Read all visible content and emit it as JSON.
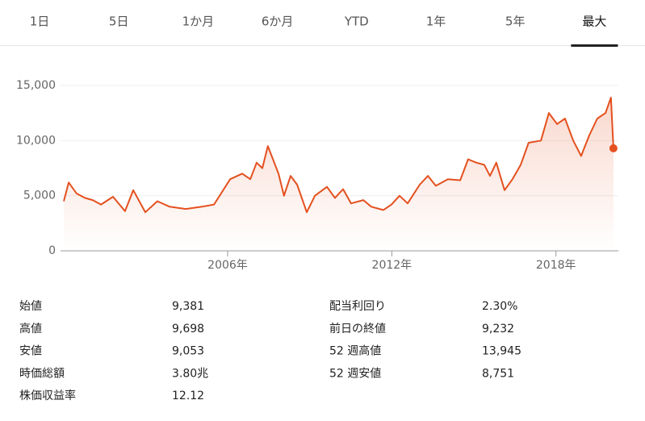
{
  "tabs": {
    "items": [
      "1日",
      "5日",
      "1か月",
      "6か月",
      "YTD",
      "1年",
      "5年",
      "最大"
    ],
    "selected": 7
  },
  "chart_data": {
    "type": "line",
    "x": [
      2000.01,
      2000.19,
      2000.48,
      2000.78,
      2001.07,
      2001.37,
      2001.81,
      2002.25,
      2002.55,
      2002.99,
      2003.43,
      2003.88,
      2004.47,
      2005.06,
      2005.5,
      2006.09,
      2006.53,
      2006.83,
      2007.06,
      2007.27,
      2007.47,
      2007.86,
      2008.06,
      2008.3,
      2008.54,
      2008.89,
      2009.19,
      2009.63,
      2009.92,
      2010.22,
      2010.51,
      2010.96,
      2011.25,
      2011.69,
      2011.99,
      2012.28,
      2012.58,
      2013.02,
      2013.32,
      2013.61,
      2014.05,
      2014.5,
      2014.79,
      2015.09,
      2015.38,
      2015.59,
      2015.82,
      2016.12,
      2016.41,
      2016.71,
      2017.0,
      2017.45,
      2017.74,
      2018.04,
      2018.33,
      2018.63,
      2018.92,
      2019.22,
      2019.51,
      2019.81,
      2020.01,
      2020.1
    ],
    "series": [
      {
        "color": "#e4501f",
        "values": [
          4500,
          6200,
          5200,
          4800,
          4600,
          4200,
          4900,
          3600,
          5500,
          3500,
          4500,
          4000,
          3800,
          4000,
          4200,
          6500,
          7000,
          6500,
          8000,
          7500,
          9500,
          7000,
          5000,
          6800,
          6000,
          3500,
          5000,
          5800,
          4800,
          5600,
          4300,
          4600,
          4000,
          3700,
          4200,
          5000,
          4300,
          6000,
          6800,
          5900,
          6500,
          6400,
          8300,
          8000,
          7800,
          6800,
          8000,
          5500,
          6500,
          7800,
          9800,
          10000,
          12500,
          11500,
          12000,
          10000,
          8600,
          10500,
          12000,
          12500,
          13900,
          9300
        ]
      }
    ],
    "xlim": [
      1999.45,
      2020.28
    ],
    "xticks": [
      {
        "value": 2006,
        "label": "2006年"
      },
      {
        "value": 2012,
        "label": "2012年"
      },
      {
        "value": 2018,
        "label": "2018年"
      }
    ],
    "ylim": [
      0,
      16000
    ],
    "yticks": [
      0,
      {
        "value": 5000,
        "label": "5,000"
      },
      {
        "value": 10000,
        "label": "10,000"
      },
      {
        "value": 15000,
        "label": "15,000"
      }
    ],
    "grid": true
  },
  "stats": {
    "left": [
      [
        "始値",
        "9,381"
      ],
      [
        "高値",
        "9,698"
      ],
      [
        "安値",
        "9,053"
      ],
      [
        "時価総額",
        "3.80兆"
      ],
      [
        "株価収益率",
        "12.12"
      ]
    ],
    "right": [
      [
        "配当利回り",
        "2.30%"
      ],
      [
        "前日の終値",
        "9,232"
      ],
      [
        "52 週高値",
        "13,945"
      ],
      [
        "52 週安値",
        "8,751"
      ]
    ]
  }
}
